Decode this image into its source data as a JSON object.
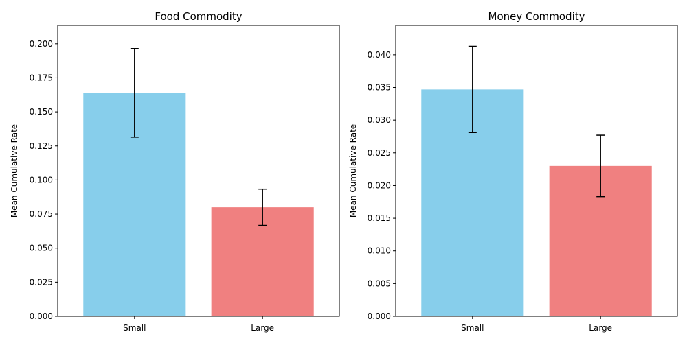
{
  "chart_data": [
    {
      "type": "bar",
      "title": "Food Commodity",
      "xlabel": "",
      "ylabel": "Mean Cumulative Rate",
      "categories": [
        "Small",
        "Large"
      ],
      "values": [
        0.164,
        0.08
      ],
      "errors": [
        0.0325,
        0.0133
      ],
      "colors": [
        "#87CEEB",
        "#F08080"
      ],
      "ylim": [
        0,
        0.2135
      ],
      "yticks": [
        0.0,
        0.025,
        0.05,
        0.075,
        0.1,
        0.125,
        0.15,
        0.175,
        0.2
      ],
      "ytick_labels": [
        "0.000",
        "0.025",
        "0.050",
        "0.075",
        "0.100",
        "0.125",
        "0.150",
        "0.175",
        "0.200"
      ],
      "grid": false,
      "legend": "none"
    },
    {
      "type": "bar",
      "title": "Money Commodity",
      "xlabel": "",
      "ylabel": "Mean Cumulative Rate",
      "categories": [
        "Small",
        "Large"
      ],
      "values": [
        0.0347,
        0.023
      ],
      "errors": [
        0.0066,
        0.0047
      ],
      "colors": [
        "#87CEEB",
        "#F08080"
      ],
      "ylim": [
        0,
        0.0445
      ],
      "yticks": [
        0.0,
        0.005,
        0.01,
        0.015,
        0.02,
        0.025,
        0.03,
        0.035,
        0.04
      ],
      "ytick_labels": [
        "0.000",
        "0.005",
        "0.010",
        "0.015",
        "0.020",
        "0.025",
        "0.030",
        "0.035",
        "0.040"
      ],
      "grid": false,
      "legend": "none"
    }
  ]
}
